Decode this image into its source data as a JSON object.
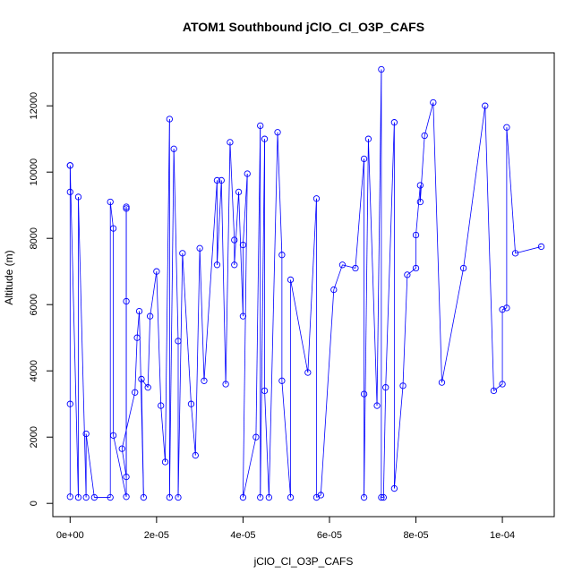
{
  "chart_data": {
    "type": "line",
    "title": "ATOM1 Southbound jClO_Cl_O3P_CAFS",
    "xlabel": "jClO_Cl_O3P_CAFS",
    "ylabel": "Altitude (m)",
    "xlim": [
      -4e-06,
      0.000112
    ],
    "ylim": [
      -400,
      13600
    ],
    "x_ticks": [
      0,
      2e-05,
      4e-05,
      6e-05,
      8e-05,
      0.0001
    ],
    "x_tick_labels": [
      "0e+00",
      "2e-05",
      "4e-05",
      "6e-05",
      "8e-05",
      "1e-04"
    ],
    "y_ticks": [
      0,
      2000,
      4000,
      6000,
      8000,
      10000,
      12000
    ],
    "y_tick_labels": [
      "0",
      "2000",
      "4000",
      "6000",
      "8000",
      "10000",
      "12000"
    ],
    "grid": false,
    "legend": "none",
    "colors": {
      "series": "#0000ff",
      "axis": "#000000",
      "background": "#ffffff"
    },
    "series": [
      {
        "marker": "open-circle",
        "points": [
          [
            0,
            200
          ],
          [
            0,
            3000
          ],
          [
            0,
            9400
          ],
          [
            0,
            10200
          ],
          [
            0,
            10200
          ],
          [
            1.9e-06,
            180
          ],
          [
            1.9e-06,
            9250
          ],
          [
            3.7e-06,
            180
          ],
          [
            3.7e-06,
            2100
          ],
          [
            5.6e-06,
            180
          ],
          [
            9.3e-06,
            180
          ],
          [
            9.3e-06,
            9100
          ],
          [
            1e-05,
            8300
          ],
          [
            1e-05,
            2050
          ],
          [
            1.3e-05,
            200
          ],
          [
            1.3e-05,
            8950
          ],
          [
            1.3e-05,
            8900
          ],
          [
            1.3e-05,
            6100
          ],
          [
            1.3e-05,
            800
          ],
          [
            1.2e-05,
            1650
          ],
          [
            1.5e-05,
            3350
          ],
          [
            1.55e-05,
            5000
          ],
          [
            1.6e-05,
            5800
          ],
          [
            1.7e-05,
            180
          ],
          [
            1.65e-05,
            3750
          ],
          [
            1.8e-05,
            3500
          ],
          [
            1.85e-05,
            5650
          ],
          [
            2e-05,
            7000
          ],
          [
            2.1e-05,
            2950
          ],
          [
            2.2e-05,
            1250
          ],
          [
            2.3e-05,
            11600
          ],
          [
            2.3e-05,
            180
          ],
          [
            2.4e-05,
            10700
          ],
          [
            2.5e-05,
            4900
          ],
          [
            2.5e-05,
            180
          ],
          [
            2.6e-05,
            7550
          ],
          [
            2.8e-05,
            3000
          ],
          [
            2.9e-05,
            1450
          ],
          [
            3e-05,
            7700
          ],
          [
            3.1e-05,
            3700
          ],
          [
            3.4e-05,
            9750
          ],
          [
            3.4e-05,
            7200
          ],
          [
            3.5e-05,
            9750
          ],
          [
            3.6e-05,
            3600
          ],
          [
            3.7e-05,
            10900
          ],
          [
            3.8e-05,
            7950
          ],
          [
            3.8e-05,
            7200
          ],
          [
            3.9e-05,
            9400
          ],
          [
            4e-05,
            5650
          ],
          [
            4e-05,
            7800
          ],
          [
            4.1e-05,
            9950
          ],
          [
            4e-05,
            180
          ],
          [
            4.3e-05,
            2000
          ],
          [
            4.4e-05,
            11400
          ],
          [
            4.4e-05,
            180
          ],
          [
            4.5e-05,
            11000
          ],
          [
            4.5e-05,
            3400
          ],
          [
            4.6e-05,
            180
          ],
          [
            4.8e-05,
            11200
          ],
          [
            4.9e-05,
            7500
          ],
          [
            4.9e-05,
            3700
          ],
          [
            5.1e-05,
            180
          ],
          [
            5.1e-05,
            6750
          ],
          [
            5.5e-05,
            3950
          ],
          [
            5.7e-05,
            9200
          ],
          [
            5.7e-05,
            180
          ],
          [
            5.8e-05,
            250
          ],
          [
            6.1e-05,
            6450
          ],
          [
            6.3e-05,
            7200
          ],
          [
            6.6e-05,
            7100
          ],
          [
            6.8e-05,
            10400
          ],
          [
            6.8e-05,
            3300
          ],
          [
            6.8e-05,
            180
          ],
          [
            6.9e-05,
            11000
          ],
          [
            7.1e-05,
            2950
          ],
          [
            7.2e-05,
            13100
          ],
          [
            7.2e-05,
            180
          ],
          [
            7.25e-05,
            180
          ],
          [
            7.3e-05,
            3500
          ],
          [
            7.5e-05,
            11500
          ],
          [
            7.5e-05,
            450
          ],
          [
            7.7e-05,
            3550
          ],
          [
            7.8e-05,
            6900
          ],
          [
            8e-05,
            7100
          ],
          [
            8e-05,
            8100
          ],
          [
            8.1e-05,
            9600
          ],
          [
            8.1e-05,
            9100
          ],
          [
            8.2e-05,
            11100
          ],
          [
            8.4e-05,
            12100
          ],
          [
            8.6e-05,
            3650
          ],
          [
            9.1e-05,
            7100
          ],
          [
            9.6e-05,
            12000
          ],
          [
            9.8e-05,
            3400
          ],
          [
            0.0001,
            3600
          ],
          [
            0.0001,
            5850
          ],
          [
            0.000101,
            5900
          ],
          [
            0.000101,
            11350
          ],
          [
            0.000103,
            7550
          ],
          [
            0.000109,
            7750
          ]
        ]
      }
    ]
  }
}
